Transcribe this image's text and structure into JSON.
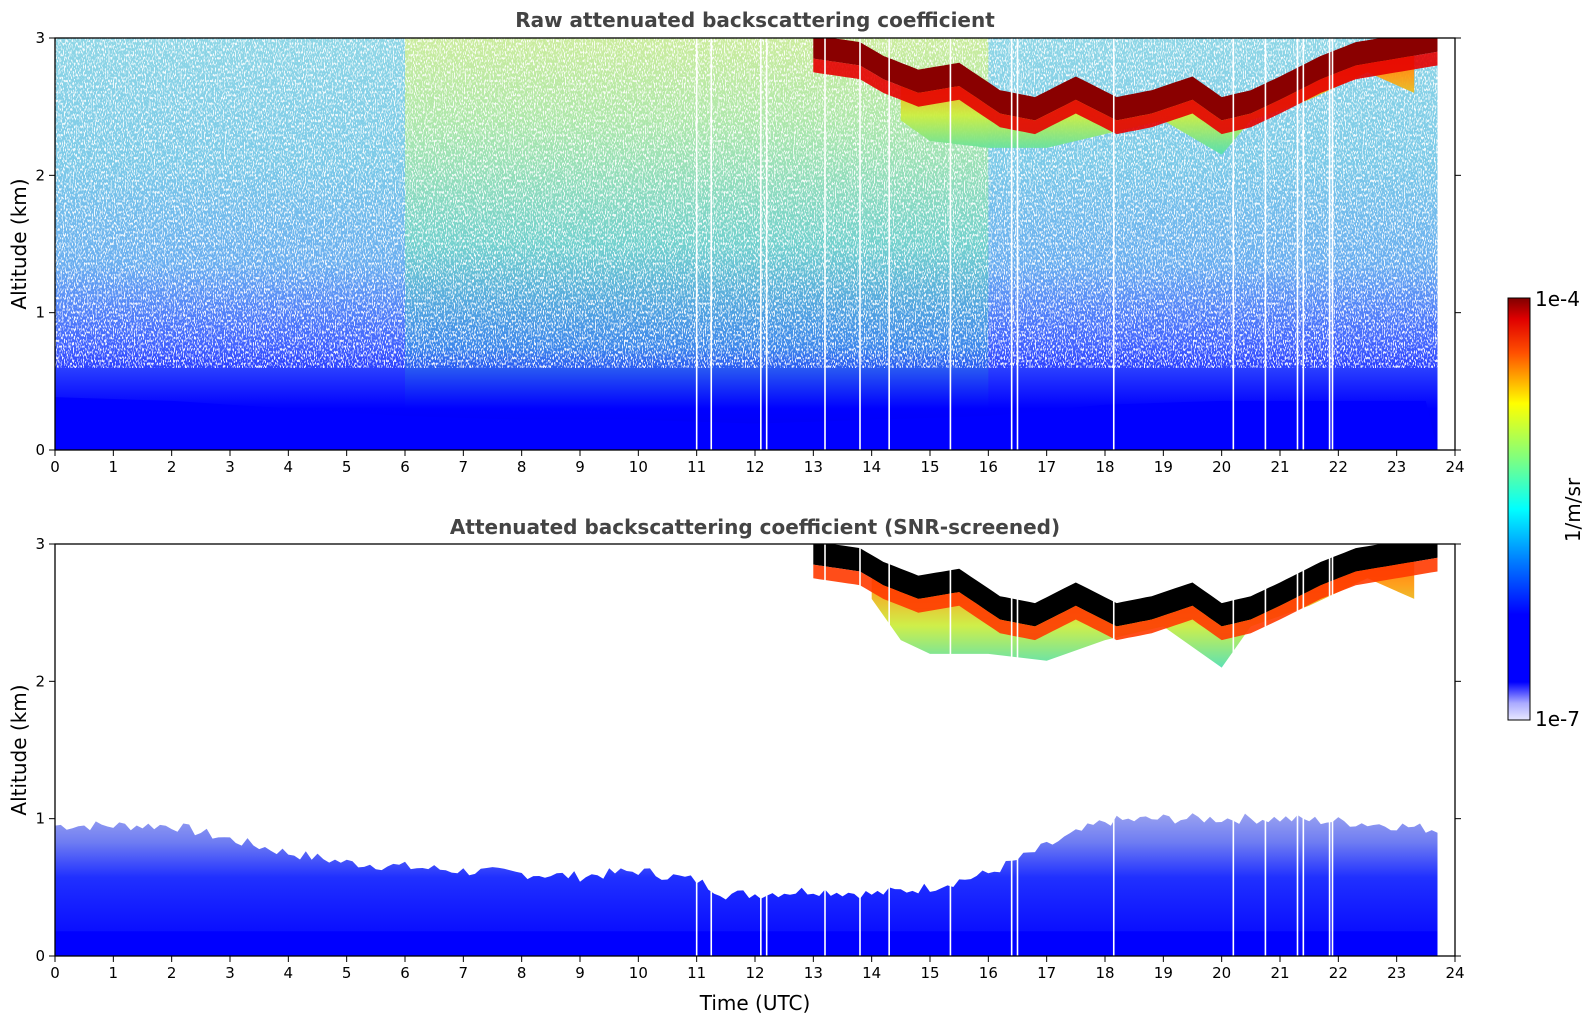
{
  "chart_data": [
    {
      "type": "heatmap",
      "title": "Raw attenuated backscattering coefficient",
      "ylabel": "Altitude (km)",
      "xlabel": "",
      "xlim": [
        0,
        24
      ],
      "ylim": [
        0,
        3
      ],
      "x_ticks": [
        "0",
        "1",
        "2",
        "3",
        "4",
        "5",
        "6",
        "7",
        "8",
        "9",
        "10",
        "11",
        "12",
        "13",
        "14",
        "15",
        "16",
        "17",
        "18",
        "19",
        "20",
        "21",
        "22",
        "23",
        "24"
      ],
      "y_ticks": [
        "0",
        "1",
        "2",
        "3"
      ],
      "data_end_time": 23.7,
      "grid": false,
      "boundary_layer_top_km": [
        [
          0,
          0.7
        ],
        [
          2,
          0.65
        ],
        [
          4,
          0.55
        ],
        [
          6,
          0.45
        ],
        [
          8,
          0.4
        ],
        [
          10,
          0.4
        ],
        [
          12,
          0.35
        ],
        [
          14,
          0.4
        ],
        [
          16,
          0.45
        ],
        [
          18,
          0.6
        ],
        [
          20,
          0.65
        ],
        [
          22,
          0.65
        ],
        [
          23.7,
          0.65
        ]
      ],
      "cloud_layer_km": [
        [
          13.0,
          2.95
        ],
        [
          13.8,
          2.9
        ],
        [
          14.2,
          2.8
        ],
        [
          14.8,
          2.7
        ],
        [
          15.5,
          2.75
        ],
        [
          16.2,
          2.55
        ],
        [
          16.8,
          2.5
        ],
        [
          17.5,
          2.65
        ],
        [
          18.2,
          2.5
        ],
        [
          18.8,
          2.55
        ],
        [
          19.5,
          2.65
        ],
        [
          20.0,
          2.5
        ],
        [
          20.5,
          2.55
        ],
        [
          21.0,
          2.65
        ],
        [
          21.7,
          2.8
        ],
        [
          22.3,
          2.9
        ],
        [
          23.0,
          2.95
        ],
        [
          23.7,
          3.0
        ]
      ],
      "cloud_base_km": [
        [
          14.5,
          2.4
        ],
        [
          15.0,
          2.25
        ],
        [
          16.0,
          2.2
        ],
        [
          17.0,
          2.2
        ],
        [
          18.0,
          2.3
        ],
        [
          19.0,
          2.4
        ],
        [
          20.0,
          2.15
        ],
        [
          20.5,
          2.4
        ],
        [
          21.5,
          2.55
        ],
        [
          22.5,
          2.75
        ],
        [
          23.3,
          2.6
        ]
      ],
      "data_gap_times": [
        11.0,
        11.25,
        12.1,
        12.2,
        13.2,
        13.8,
        14.3,
        15.35,
        16.4,
        16.5,
        18.15,
        20.2,
        20.75,
        21.3,
        21.4,
        21.85,
        21.9
      ]
    },
    {
      "type": "heatmap",
      "title": "Attenuated backscattering coefficient (SNR-screened)",
      "ylabel": "Altitude (km)",
      "xlabel": "Time (UTC)",
      "xlim": [
        0,
        24
      ],
      "ylim": [
        0,
        3
      ],
      "x_ticks": [
        "0",
        "1",
        "2",
        "3",
        "4",
        "5",
        "6",
        "7",
        "8",
        "9",
        "10",
        "11",
        "12",
        "13",
        "14",
        "15",
        "16",
        "17",
        "18",
        "19",
        "20",
        "21",
        "22",
        "23",
        "24"
      ],
      "y_ticks": [
        "0",
        "1",
        "2",
        "3"
      ],
      "data_end_time": 23.7,
      "grid": false,
      "boundary_layer_top_km": [
        [
          0,
          0.95
        ],
        [
          1,
          0.95
        ],
        [
          2,
          0.95
        ],
        [
          3,
          0.85
        ],
        [
          4,
          0.75
        ],
        [
          5,
          0.68
        ],
        [
          6,
          0.65
        ],
        [
          7,
          0.62
        ],
        [
          8,
          0.6
        ],
        [
          9,
          0.58
        ],
        [
          10,
          0.62
        ],
        [
          11,
          0.55
        ],
        [
          11.5,
          0.45
        ],
        [
          12,
          0.45
        ],
        [
          13,
          0.48
        ],
        [
          14,
          0.45
        ],
        [
          15,
          0.5
        ],
        [
          16,
          0.6
        ],
        [
          17,
          0.8
        ],
        [
          18,
          0.98
        ],
        [
          19,
          1.0
        ],
        [
          20,
          1.0
        ],
        [
          21,
          1.0
        ],
        [
          22,
          0.98
        ],
        [
          23,
          0.95
        ],
        [
          23.7,
          0.92
        ]
      ],
      "cloud_layer_km": [
        [
          13.0,
          2.95
        ],
        [
          13.8,
          2.9
        ],
        [
          14.2,
          2.8
        ],
        [
          14.8,
          2.7
        ],
        [
          15.5,
          2.75
        ],
        [
          16.2,
          2.55
        ],
        [
          16.8,
          2.5
        ],
        [
          17.5,
          2.65
        ],
        [
          18.2,
          2.5
        ],
        [
          18.8,
          2.55
        ],
        [
          19.5,
          2.65
        ],
        [
          20.0,
          2.5
        ],
        [
          20.5,
          2.55
        ],
        [
          21.0,
          2.65
        ],
        [
          21.7,
          2.8
        ],
        [
          22.3,
          2.9
        ],
        [
          23.0,
          2.95
        ],
        [
          23.7,
          3.0
        ]
      ],
      "cloud_base_km": [
        [
          14.0,
          2.6
        ],
        [
          14.5,
          2.3
        ],
        [
          15.0,
          2.2
        ],
        [
          16.0,
          2.2
        ],
        [
          17.0,
          2.15
        ],
        [
          18.0,
          2.3
        ],
        [
          19.0,
          2.4
        ],
        [
          20.0,
          2.1
        ],
        [
          20.5,
          2.4
        ],
        [
          21.5,
          2.55
        ],
        [
          22.5,
          2.75
        ],
        [
          23.3,
          2.6
        ]
      ],
      "data_gap_times": [
        11.0,
        11.25,
        12.1,
        12.2,
        13.2,
        13.8,
        14.3,
        15.35,
        16.4,
        16.5,
        18.15,
        20.2,
        20.75,
        21.3,
        21.4,
        21.85,
        21.9
      ]
    }
  ],
  "colorbar": {
    "max_label": "1e-4",
    "min_label": "1e-7",
    "label": "1/m/sr",
    "colormap": "jet",
    "colors": {
      "low_pale": "#dcdcff",
      "blue": "#0000ff",
      "cyan": "#00ffff",
      "green": "#7fff7f",
      "yellow": "#ffff00",
      "orange": "#ff7f00",
      "red": "#ff0000",
      "dark_red": "#800000",
      "saturated_black": "#000000"
    }
  }
}
